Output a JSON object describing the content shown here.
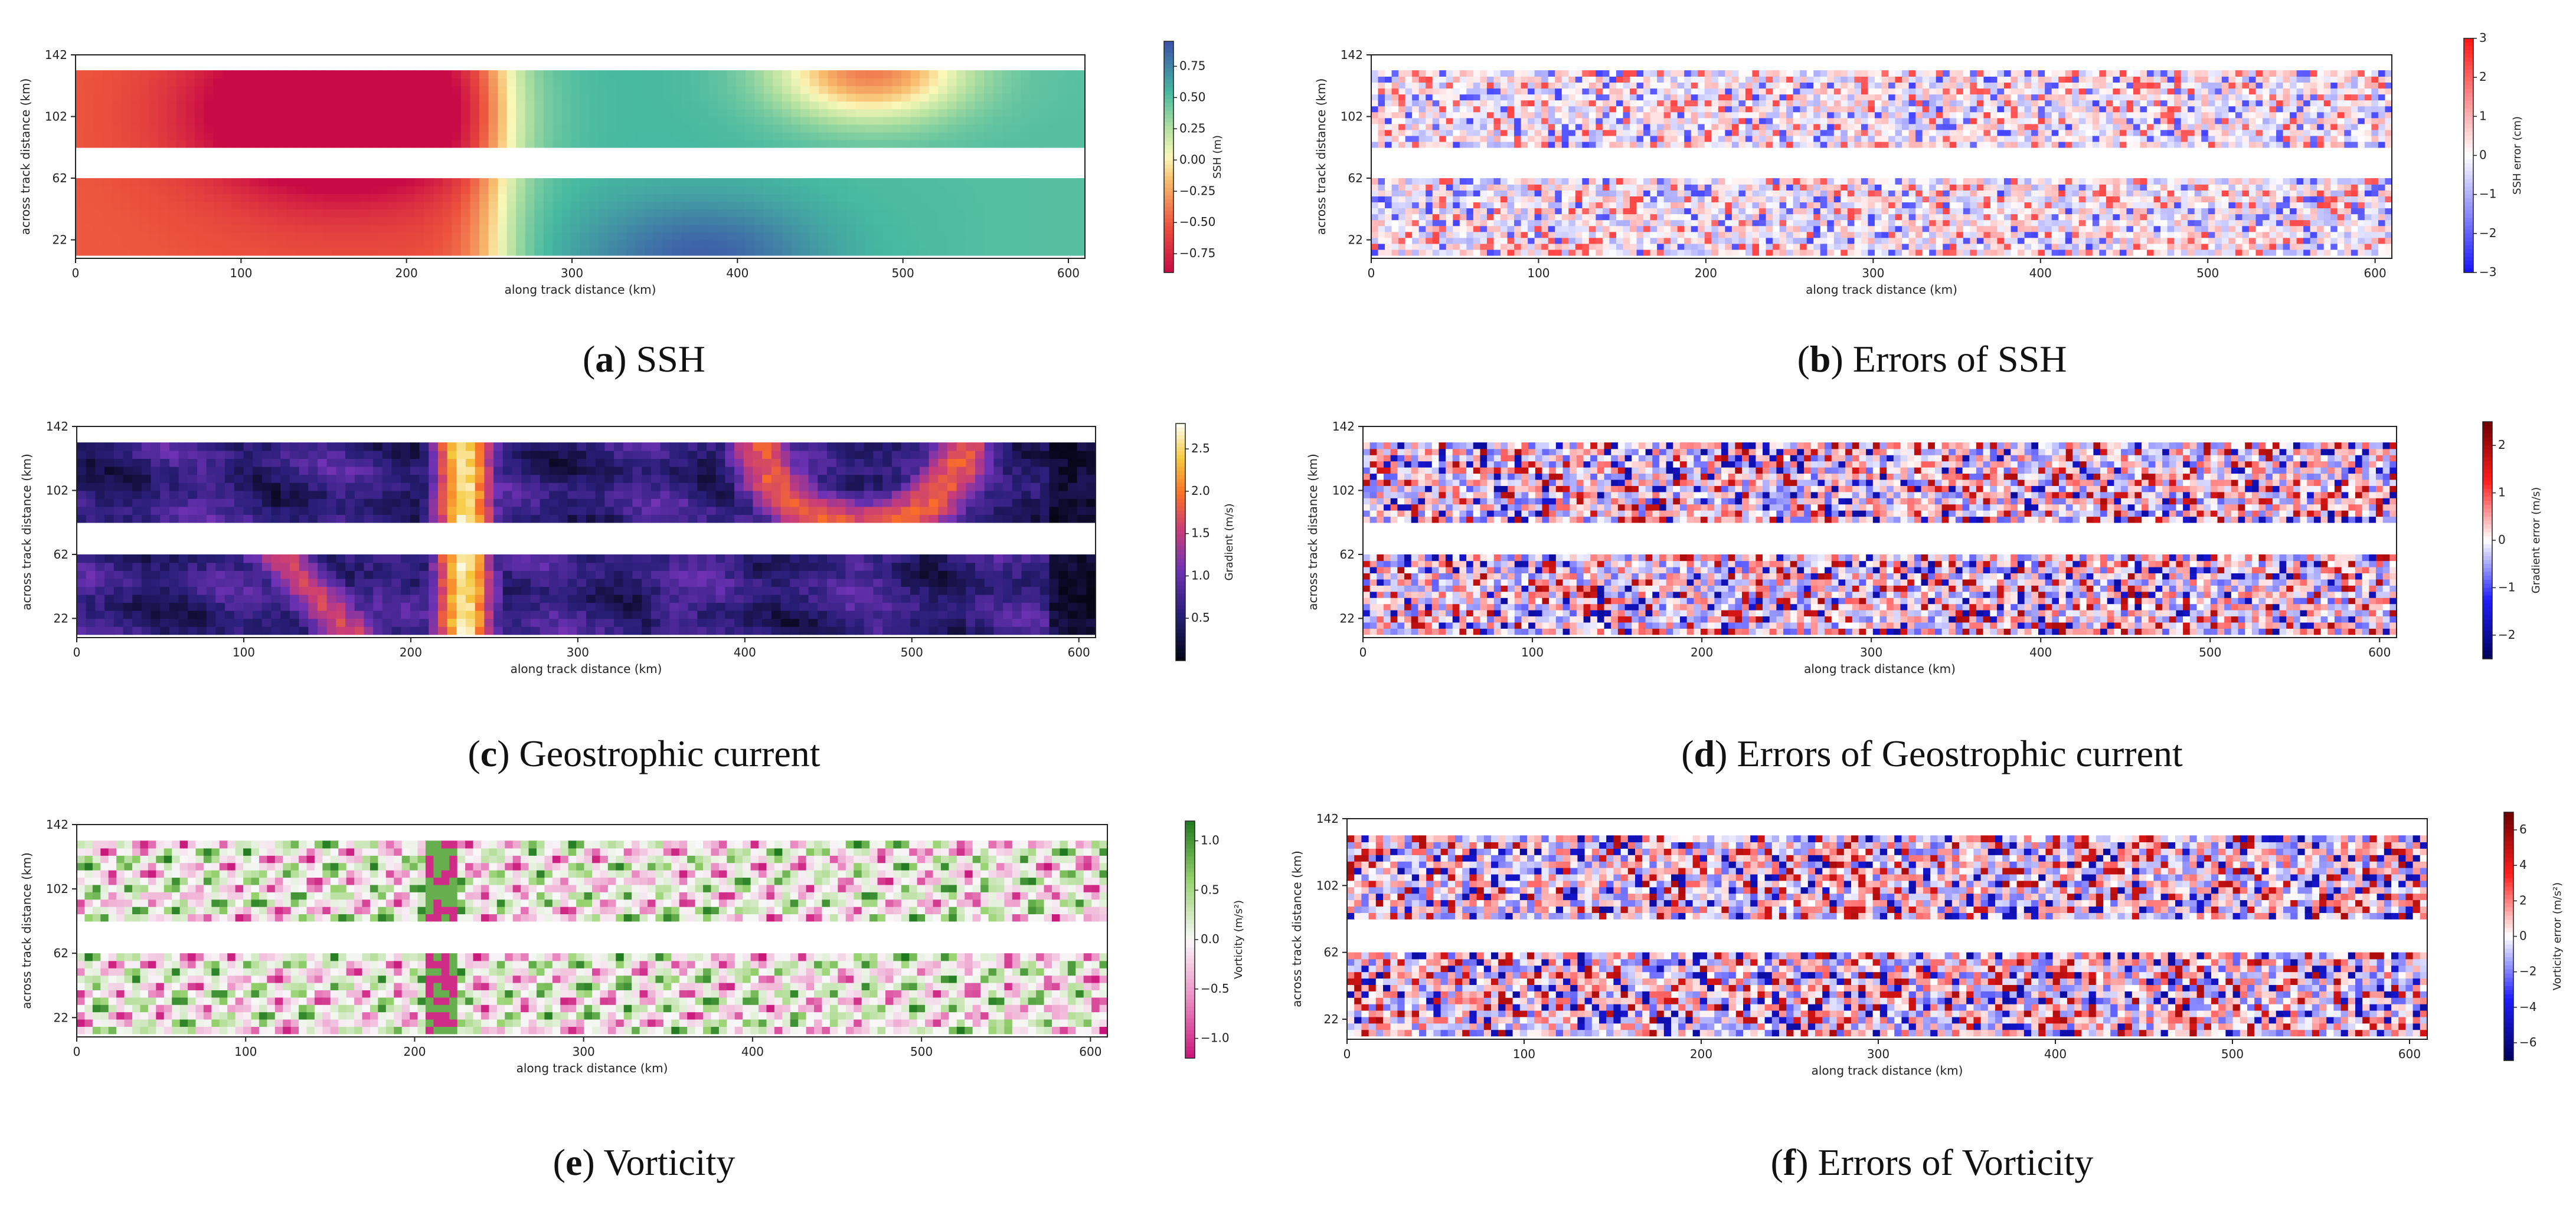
{
  "chart_data": [
    {
      "id": "a",
      "type": "heatmap",
      "colormap": "Spectral",
      "caption_letter": "a",
      "caption_text": "SSH",
      "xlabel": "along track distance (km)",
      "ylabel": "across track distance (km)",
      "xlim": [
        0,
        610
      ],
      "ylim": [
        10,
        142
      ],
      "x_ticks": [
        "0",
        "100",
        "200",
        "300",
        "400",
        "500",
        "600"
      ],
      "y_ticks": [
        "22",
        "62",
        "102",
        "142"
      ],
      "colorbar_label": "SSH (m)",
      "colorbar_range": [
        -0.9,
        0.95
      ],
      "colorbar_ticks": [
        "0.75",
        "0.50",
        "0.25",
        "0.00",
        "−0.25",
        "−0.50",
        "−0.75"
      ],
      "swath_rows": [
        [
          12,
          62
        ],
        [
          82,
          132
        ]
      ],
      "field": "smooth"
    },
    {
      "id": "b",
      "type": "heatmap",
      "colormap": "bwr",
      "caption_letter": "b",
      "caption_text": "Errors of SSH",
      "xlabel": "along track distance (km)",
      "ylabel": "across track distance (km)",
      "xlim": [
        0,
        610
      ],
      "ylim": [
        10,
        142
      ],
      "x_ticks": [
        "0",
        "100",
        "200",
        "300",
        "400",
        "500",
        "600"
      ],
      "y_ticks": [
        "22",
        "62",
        "102",
        "142"
      ],
      "colorbar_label": "SSH error (cm)",
      "colorbar_range": [
        -3,
        3
      ],
      "colorbar_ticks": [
        "3",
        "2",
        "1",
        "0",
        "−1",
        "−2",
        "−3"
      ],
      "swath_rows": [
        [
          12,
          62
        ],
        [
          82,
          132
        ]
      ],
      "field": "noise"
    },
    {
      "id": "c",
      "type": "heatmap",
      "colormap": "CMRmap",
      "caption_letter": "c",
      "caption_text": "Geostrophic current",
      "xlabel": "along track distance (km)",
      "ylabel": "across track distance (km)",
      "xlim": [
        0,
        610
      ],
      "ylim": [
        10,
        142
      ],
      "x_ticks": [
        "0",
        "100",
        "200",
        "300",
        "400",
        "500",
        "600"
      ],
      "y_ticks": [
        "22",
        "62",
        "102",
        "142"
      ],
      "colorbar_label": "Gradient (m/s)",
      "colorbar_range": [
        0,
        2.8
      ],
      "colorbar_ticks": [
        "2.5",
        "2.0",
        "1.5",
        "1.0",
        "0.5"
      ],
      "swath_rows": [
        [
          12,
          62
        ],
        [
          82,
          132
        ]
      ],
      "field": "smooth"
    },
    {
      "id": "d",
      "type": "heatmap",
      "colormap": "seismic",
      "caption_letter": "d",
      "caption_text": "Errors of Geostrophic current",
      "xlabel": "along track distance (km)",
      "ylabel": "across track distance (km)",
      "xlim": [
        0,
        610
      ],
      "ylim": [
        10,
        142
      ],
      "x_ticks": [
        "0",
        "100",
        "200",
        "300",
        "400",
        "500",
        "600"
      ],
      "y_ticks": [
        "22",
        "62",
        "102",
        "142"
      ],
      "colorbar_label": "Gradient error (m/s)",
      "colorbar_range": [
        -2.5,
        2.5
      ],
      "colorbar_ticks": [
        "2",
        "1",
        "0",
        "−1",
        "−2"
      ],
      "swath_rows": [
        [
          12,
          62
        ],
        [
          82,
          132
        ]
      ],
      "field": "noise"
    },
    {
      "id": "e",
      "type": "heatmap",
      "colormap": "PiYG",
      "caption_letter": "e",
      "caption_text": "Vorticity",
      "xlabel": "along track distance (km)",
      "ylabel": "across track distance (km)",
      "xlim": [
        0,
        610
      ],
      "ylim": [
        10,
        142
      ],
      "x_ticks": [
        "0",
        "100",
        "200",
        "300",
        "400",
        "500",
        "600"
      ],
      "y_ticks": [
        "22",
        "62",
        "102",
        "142"
      ],
      "colorbar_label": "Vorticity (m/s²)",
      "colorbar_range": [
        -1.2,
        1.2
      ],
      "colorbar_ticks": [
        "1.0",
        "0.5",
        "0.0",
        "−0.5",
        "−1.0"
      ],
      "swath_rows": [
        [
          12,
          62
        ],
        [
          82,
          132
        ]
      ],
      "field": "patchy"
    },
    {
      "id": "f",
      "type": "heatmap",
      "colormap": "seismic",
      "caption_letter": "f",
      "caption_text": "Errors of Vorticity",
      "xlabel": "along track distance (km)",
      "ylabel": "across track distance (km)",
      "xlim": [
        0,
        610
      ],
      "ylim": [
        10,
        142
      ],
      "x_ticks": [
        "0",
        "100",
        "200",
        "300",
        "400",
        "500",
        "600"
      ],
      "y_ticks": [
        "22",
        "62",
        "102",
        "142"
      ],
      "colorbar_label": "Vorticity error (m/s²)",
      "colorbar_range": [
        -7,
        7
      ],
      "colorbar_ticks": [
        "6",
        "4",
        "2",
        "0",
        "−2",
        "−4",
        "−6"
      ],
      "swath_rows": [
        [
          12,
          62
        ],
        [
          82,
          132
        ]
      ],
      "field": "noise"
    }
  ]
}
